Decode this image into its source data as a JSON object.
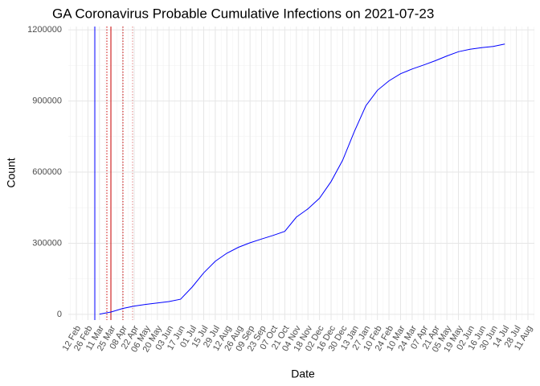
{
  "chart_data": {
    "type": "line",
    "title": "GA Coronavirus Probable Cumulative Infections on 2021-07-23",
    "x_label": "Date",
    "y_label": "Count",
    "categories": [
      "12 Feb",
      "26 Feb",
      "11 Mar",
      "25 Mar",
      "08 Apr",
      "22 Apr",
      "06 May",
      "20 May",
      "03 Jun",
      "17 Jun",
      "01 Jul",
      "15 Jul",
      "29 Jul",
      "12 Aug",
      "26 Aug",
      "09 Sep",
      "23 Sep",
      "07 Oct",
      "21 Oct",
      "04 Nov",
      "18 Nov",
      "02 Dec",
      "16 Dec",
      "30 Dec",
      "13 Jan",
      "27 Jan",
      "10 Feb",
      "24 Feb",
      "10 Mar",
      "24 Mar",
      "07 Apr",
      "21 Apr",
      "05 May",
      "19 May",
      "02 Jun",
      "16 Jun",
      "30 Jun",
      "14 Jul",
      "28 Jul",
      "11 Aug"
    ],
    "series": [
      {
        "name": "Count",
        "color": "#0000ff",
        "values": [
          null,
          null,
          1000,
          10000,
          25000,
          35000,
          42000,
          48000,
          54000,
          64000,
          115000,
          175000,
          224000,
          258000,
          283000,
          302000,
          318000,
          333000,
          350000,
          410000,
          445000,
          490000,
          560000,
          650000,
          770000,
          880000,
          945000,
          985000,
          1015000,
          1035000,
          1052000,
          1070000,
          1090000,
          1108000,
          1118000,
          1125000,
          1130000,
          1140000,
          null,
          null
        ]
      }
    ],
    "ylim": [
      -24000,
      1214000
    ],
    "yticks": [
      0,
      300000,
      600000,
      900000,
      1200000
    ],
    "grid": true
  }
}
